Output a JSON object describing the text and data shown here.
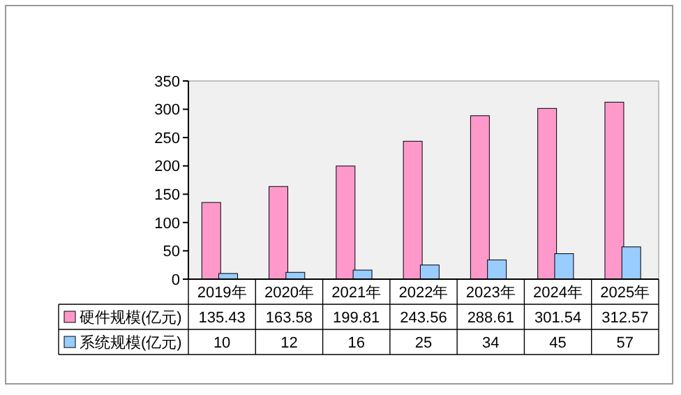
{
  "chart_data": {
    "type": "bar",
    "categories": [
      "2019年",
      "2020年",
      "2021年",
      "2022年",
      "2023年",
      "2024年",
      "2025年"
    ],
    "series": [
      {
        "name": "硬件规模(亿元)",
        "color": "#ff99cc",
        "values": [
          135.43,
          163.58,
          199.81,
          243.56,
          288.61,
          301.54,
          312.57
        ]
      },
      {
        "name": "系统规模(亿元)",
        "color": "#99ccff",
        "values": [
          10,
          12,
          16,
          25,
          34,
          45,
          57
        ]
      }
    ],
    "ylim": [
      0,
      350
    ],
    "yticks": [
      0,
      50,
      100,
      150,
      200,
      250,
      300,
      350
    ],
    "grid": false,
    "data_labels": true,
    "legend": "bottom left"
  }
}
